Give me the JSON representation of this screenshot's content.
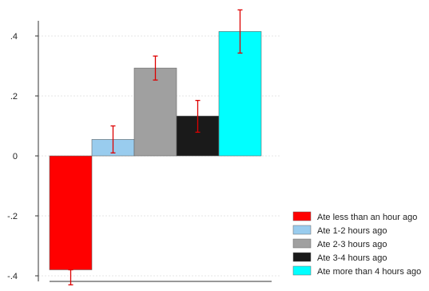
{
  "chart_data": {
    "type": "bar",
    "categories": [
      "Ate less than an hour ago",
      "Ate 1-2 hours ago",
      "Ate 2-3 hours ago",
      "Ate 3-4 hours ago",
      "Ate more than 4 hours ago"
    ],
    "values": [
      -0.38,
      0.055,
      0.293,
      0.133,
      0.415
    ],
    "error_bars": [
      {
        "low": -0.43,
        "high": -0.38
      },
      {
        "low": 0.01,
        "high": 0.1
      },
      {
        "low": 0.253,
        "high": 0.333
      },
      {
        "low": 0.079,
        "high": 0.185
      },
      {
        "low": 0.343,
        "high": 0.487
      }
    ],
    "colors": [
      "#ff0000",
      "#99ccee",
      "#a0a0a0",
      "#1a1a1a",
      "#00ffff"
    ],
    "error_bar_color": "#dd0000",
    "ylim": [
      -0.4,
      0.5
    ],
    "yticks": [
      {
        "value": 0.4,
        "label": ".4"
      },
      {
        "value": 0.2,
        "label": ".2"
      },
      {
        "value": 0,
        "label": "0"
      },
      {
        "value": -0.2,
        "label": "-.2"
      },
      {
        "value": -0.4,
        "label": "-.4"
      }
    ],
    "grid": true,
    "legend_position": "bottom-right",
    "title": "",
    "xlabel": "",
    "ylabel": ""
  }
}
